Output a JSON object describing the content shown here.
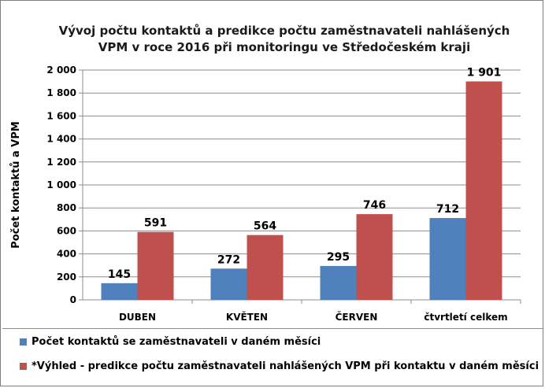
{
  "chart_data": {
    "type": "bar",
    "title_lines": [
      "Vývoj  počtu kontaktů a predikce počtu zaměstnavateli nahlášených",
      "VPM v roce 2016 při monitoringu ve Středočeském kraji"
    ],
    "xlabel": "",
    "ylabel": "Počet  kontaktů  a VPM",
    "categories": [
      "DUBEN",
      "KVĚTEN",
      "ČERVEN",
      "čtvrtletí celkem"
    ],
    "series": [
      {
        "name": "Počet kontaktů se zaměstnavateli v daném měsíci",
        "color": "#4f81bd",
        "values": [
          145,
          272,
          295,
          712
        ],
        "labels": [
          "145",
          "272",
          "295",
          "712"
        ]
      },
      {
        "name": "*Výhled - predikce počtu zaměstnavateli nahlášených VPM při kontaktu v daném měsíci",
        "color": "#c0504d",
        "values": [
          591,
          564,
          746,
          1901
        ],
        "labels": [
          "591",
          "564",
          "746",
          "1 901"
        ]
      }
    ],
    "ylim": [
      0,
      2000
    ],
    "yticks": [
      0,
      200,
      400,
      600,
      800,
      1000,
      1200,
      1400,
      1600,
      1800,
      2000
    ],
    "ytick_labels": [
      "0",
      "200",
      "400",
      "600",
      "800",
      "1 000",
      "1 200",
      "1 400",
      "1 600",
      "1 800",
      "2 000"
    ],
    "grid": true,
    "legend_position": "bottom"
  }
}
